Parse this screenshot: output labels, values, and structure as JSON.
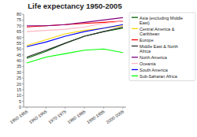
{
  "chart_data": {
    "type": "line",
    "title": "Life expectancy 1950-2005",
    "categories": [
      "1950-1955",
      "1960-1965",
      "1970-1975",
      "1980-1985",
      "1990-1995",
      "2000-2005"
    ],
    "series": [
      {
        "name": "Asia (excluding Middle\nEast)",
        "color": "#006400",
        "values": [
          42,
          48,
          55,
          61,
          65,
          68
        ]
      },
      {
        "name": "Central America &\nCaribbean",
        "color": "#FFD700",
        "values": [
          53,
          58,
          63,
          66,
          68,
          70
        ]
      },
      {
        "name": "Europe",
        "color": "#FF0000",
        "values": [
          69,
          70,
          71,
          72,
          73,
          74
        ]
      },
      {
        "name": "Middle East & North\nAfrica",
        "color": "#303030",
        "values": [
          43,
          49,
          55,
          61,
          65,
          69
        ]
      },
      {
        "name": "North America",
        "color": "#800080",
        "values": [
          70,
          70,
          71,
          73,
          75,
          77
        ]
      },
      {
        "name": "Oceania",
        "color": "#FFB6C1",
        "values": [
          65,
          66,
          67,
          69,
          72,
          74
        ]
      },
      {
        "name": "South America",
        "color": "#0000FF",
        "values": [
          52,
          56,
          61,
          65,
          68,
          71
        ]
      },
      {
        "name": "Sub-Saharan Africa",
        "color": "#00FF00",
        "values": [
          38,
          43,
          46,
          49,
          50,
          47
        ]
      }
    ],
    "ylim": [
      0,
      80
    ],
    "yticks": [
      0,
      5,
      10,
      15,
      20,
      25,
      30,
      35,
      40,
      45,
      50,
      55,
      60,
      65,
      70,
      75,
      80
    ],
    "grid": false,
    "legend": "right"
  }
}
